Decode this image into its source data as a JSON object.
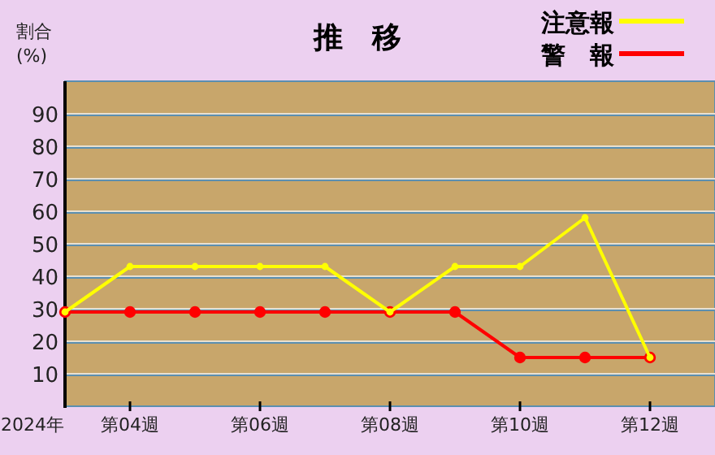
{
  "chart_data": {
    "type": "line",
    "title": "推　移",
    "ylabel": "割合\n(%)",
    "xlabel": "2024年",
    "categories": [
      null,
      "第04週",
      null,
      "第06週",
      null,
      "第08週",
      null,
      "第10週",
      null,
      "第12週"
    ],
    "series": [
      {
        "name": "注意報",
        "color": "#ffff00",
        "values": [
          29,
          43,
          43,
          43,
          43,
          29,
          43,
          43,
          58,
          15
        ]
      },
      {
        "name": "警　報",
        "color": "#ff0000",
        "values": [
          29,
          29,
          29,
          29,
          29,
          29,
          29,
          15,
          15,
          15
        ]
      }
    ],
    "ylim": [
      0,
      100
    ],
    "yticks": [
      10,
      20,
      30,
      40,
      50,
      60,
      70,
      80,
      90
    ],
    "grid": "y",
    "legend": "top right",
    "marker": "circle",
    "line_style": "solid"
  }
}
